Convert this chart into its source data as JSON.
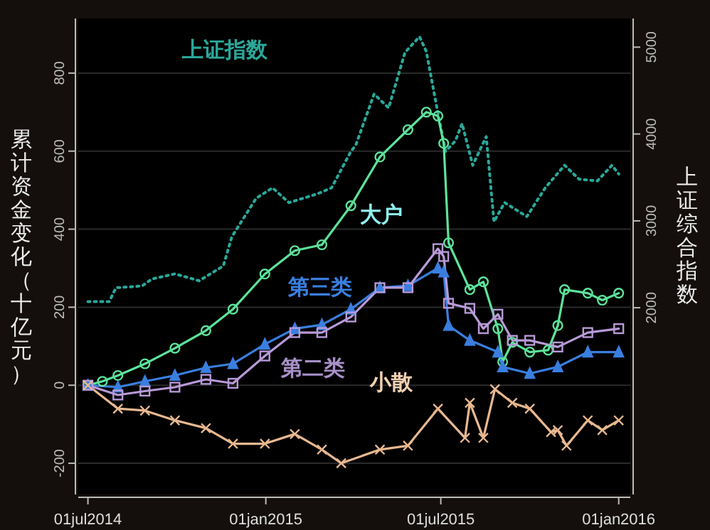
{
  "chart_data": {
    "type": "line",
    "ylabel": "累计资金变化（十亿元）",
    "y2label": "上证综合指数",
    "xlim": [
      "2014-06-21",
      "2016-01-13"
    ],
    "xticks": [
      {
        "value": "2014-07-01",
        "label": "01jul2014"
      },
      {
        "value": "2015-01-01",
        "label": "01jan2015"
      },
      {
        "value": "2015-07-01",
        "label": "01jul2015"
      },
      {
        "value": "2016-01-01",
        "label": "01jan2016"
      }
    ],
    "ylim": [
      -280,
      940
    ],
    "yticks": [
      -200,
      0,
      200,
      400,
      600,
      800
    ],
    "y2lim": [
      -150,
      5330
    ],
    "y2ticks": [
      2000,
      3000,
      4000,
      5000
    ],
    "grid": "y",
    "legend": false,
    "series": [
      {
        "name": "上证指数",
        "color": "#2aa89a",
        "axis": "y2",
        "line_style": "dotted",
        "marker": "none",
        "x": [
          "2014-07-01",
          "2014-07-23",
          "2014-07-30",
          "2014-08-26",
          "2014-09-05",
          "2014-09-29",
          "2014-10-24",
          "2014-11-18",
          "2014-11-27",
          "2014-12-22",
          "2015-01-08",
          "2015-01-25",
          "2015-02-23",
          "2015-03-10",
          "2015-03-30",
          "2015-04-04",
          "2015-04-23",
          "2015-05-08",
          "2015-05-25",
          "2015-06-09",
          "2015-06-16",
          "2015-06-27",
          "2015-07-06",
          "2015-07-16",
          "2015-07-23",
          "2015-08-03",
          "2015-08-17",
          "2015-08-25",
          "2015-09-05",
          "2015-09-28",
          "2015-10-17",
          "2015-11-06",
          "2015-11-21",
          "2015-12-10",
          "2015-12-25",
          "2016-01-01"
        ],
        "values": [
          2070,
          2070,
          2230,
          2250,
          2330,
          2390,
          2310,
          2480,
          2820,
          3260,
          3380,
          3210,
          3310,
          3380,
          3800,
          3870,
          4460,
          4300,
          4940,
          5120,
          4950,
          4300,
          3800,
          3920,
          4120,
          3640,
          3970,
          2990,
          3210,
          3050,
          3380,
          3640,
          3480,
          3460,
          3640,
          3540
        ]
      },
      {
        "name": "大户",
        "color": "#5de39a",
        "line_style": "solid",
        "marker": "circle",
        "x": [
          "2014-07-01",
          "2014-07-16",
          "2014-08-01",
          "2014-08-29",
          "2014-09-29",
          "2014-10-31",
          "2014-11-28",
          "2014-12-31",
          "2015-01-31",
          "2015-02-28",
          "2015-03-30",
          "2015-04-29",
          "2015-05-28",
          "2015-06-16",
          "2015-06-28",
          "2015-07-04",
          "2015-07-09",
          "2015-07-31",
          "2015-08-14",
          "2015-08-29",
          "2015-09-03",
          "2015-09-13",
          "2015-10-01",
          "2015-10-20",
          "2015-10-30",
          "2015-11-06",
          "2015-11-30",
          "2015-12-15",
          "2016-01-01"
        ],
        "values": [
          0,
          10,
          25,
          55,
          95,
          140,
          195,
          285,
          345,
          360,
          460,
          585,
          655,
          700,
          690,
          620,
          365,
          245,
          265,
          145,
          60,
          110,
          85,
          90,
          153,
          245,
          236,
          218,
          236
        ]
      },
      {
        "name": "第三类",
        "color": "#3a7fe0",
        "line_style": "solid",
        "marker": "triangle",
        "x": [
          "2014-07-01",
          "2014-08-01",
          "2014-08-29",
          "2014-09-29",
          "2014-10-31",
          "2014-11-28",
          "2014-12-31",
          "2015-01-31",
          "2015-02-28",
          "2015-03-30",
          "2015-04-29",
          "2015-05-28",
          "2015-06-28",
          "2015-07-04",
          "2015-07-09",
          "2015-07-31",
          "2015-08-29",
          "2015-09-03",
          "2015-10-01",
          "2015-10-30",
          "2015-11-30",
          "2016-01-01"
        ],
        "values": [
          0,
          -5,
          10,
          25,
          45,
          55,
          105,
          145,
          155,
          195,
          250,
          255,
          300,
          290,
          153,
          115,
          85,
          47,
          30,
          47,
          85,
          85
        ]
      },
      {
        "name": "第二类",
        "color": "#b89ad8",
        "line_style": "solid",
        "marker": "square",
        "x": [
          "2014-07-01",
          "2014-08-01",
          "2014-08-29",
          "2014-09-29",
          "2014-10-31",
          "2014-11-28",
          "2014-12-31",
          "2015-01-31",
          "2015-02-28",
          "2015-03-30",
          "2015-04-29",
          "2015-05-28",
          "2015-06-28",
          "2015-07-04",
          "2015-07-09",
          "2015-07-31",
          "2015-08-14",
          "2015-08-29",
          "2015-09-13",
          "2015-10-01",
          "2015-10-30",
          "2015-11-30",
          "2016-01-01"
        ],
        "values": [
          0,
          -25,
          -15,
          -5,
          15,
          5,
          75,
          135,
          135,
          175,
          250,
          250,
          350,
          330,
          210,
          197,
          145,
          182,
          115,
          115,
          98,
          135,
          145
        ]
      },
      {
        "name": "小散",
        "color": "#e8b890",
        "line_style": "solid",
        "marker": "cross",
        "x": [
          "2014-07-01",
          "2014-08-01",
          "2014-08-29",
          "2014-09-29",
          "2014-10-31",
          "2014-11-28",
          "2014-12-31",
          "2015-01-31",
          "2015-02-28",
          "2015-03-20",
          "2015-04-29",
          "2015-05-28",
          "2015-06-28",
          "2015-07-26",
          "2015-07-31",
          "2015-08-14",
          "2015-08-26",
          "2015-09-13",
          "2015-10-01",
          "2015-10-23",
          "2015-10-30",
          "2015-11-08",
          "2015-11-30",
          "2015-12-15",
          "2016-01-01"
        ],
        "values": [
          0,
          -60,
          -65,
          -90,
          -110,
          -150,
          -150,
          -125,
          -165,
          -200,
          -165,
          -155,
          -60,
          -135,
          -45,
          -135,
          -10,
          -45,
          -60,
          -120,
          -115,
          -155,
          -90,
          -115,
          -90
        ]
      }
    ]
  }
}
